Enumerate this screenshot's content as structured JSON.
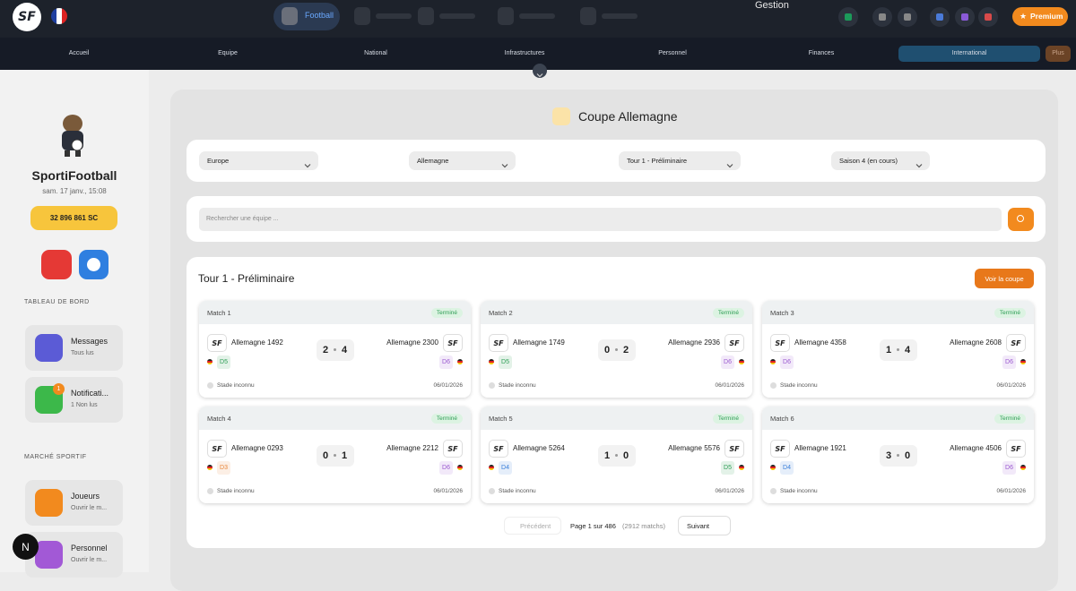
{
  "header": {
    "logo": "SF",
    "nav_active": "Football",
    "tooltip": "Gestion",
    "premium": "Premium",
    "dev_badge": "N"
  },
  "tabs": [
    "Accueil",
    "Equipe",
    "National",
    "Infrastructures",
    "Personnel",
    "Finances",
    "International",
    "Plus"
  ],
  "sidebar": {
    "name": "SportiFootball",
    "date": "sam. 17 janv., 15:08",
    "balance": "32 896 861 SC",
    "section_dashboard": "TABLEAU DE BORD",
    "dashboard_items": [
      {
        "title": "Messages",
        "sub": "Tous lus"
      },
      {
        "title": "Notificati...",
        "sub": "1 Non lus",
        "badge": "1"
      }
    ],
    "section_market": "MARCHÉ SPORTIF",
    "market_items": [
      {
        "title": "Joueurs",
        "sub": "Ouvrir le m..."
      },
      {
        "title": "Personnel",
        "sub": "Ouvrir le m..."
      }
    ]
  },
  "page": {
    "title": "Coupe Allemagne",
    "filters": [
      "Europe",
      "Allemagne",
      "Tour 1 - Préliminaire",
      "Saison 4 (en cours)"
    ],
    "search_placeholder": "Rechercher une équipe ...",
    "round": "Tour 1 - Préliminaire",
    "cup_button": "Voir la coupe",
    "division_colors": {
      "D3": "#e8863a",
      "D4": "#3b7fd9",
      "D5": "#2e9e55",
      "D6": "#9b59d0"
    },
    "matches": [
      {
        "label": "Match 1",
        "status": "Terminé",
        "home": "Allemagne 1492",
        "home_div": "D5",
        "score_home": 2,
        "score_away": 4,
        "away": "Allemagne 2300",
        "away_div": "D6",
        "venue": "Stade inconnu",
        "date": "06/01/2026"
      },
      {
        "label": "Match 2",
        "status": "Terminé",
        "home": "Allemagne 1749",
        "home_div": "D5",
        "score_home": 0,
        "score_away": 2,
        "away": "Allemagne 2936",
        "away_div": "D6",
        "venue": "Stade inconnu",
        "date": "06/01/2026"
      },
      {
        "label": "Match 3",
        "status": "Terminé",
        "home": "Allemagne 4358",
        "home_div": "D6",
        "score_home": 1,
        "score_away": 4,
        "away": "Allemagne 2608",
        "away_div": "D6",
        "venue": "Stade inconnu",
        "date": "06/01/2026"
      },
      {
        "label": "Match 4",
        "status": "Terminé",
        "home": "Allemagne 0293",
        "home_div": "D3",
        "score_home": 0,
        "score_away": 1,
        "away": "Allemagne 2212",
        "away_div": "D6",
        "venue": "Stade inconnu",
        "date": "06/01/2026"
      },
      {
        "label": "Match 5",
        "status": "Terminé",
        "home": "Allemagne 5264",
        "home_div": "D4",
        "score_home": 1,
        "score_away": 0,
        "away": "Allemagne 5576",
        "away_div": "D5",
        "venue": "Stade inconnu",
        "date": "06/01/2026"
      },
      {
        "label": "Match 6",
        "status": "Terminé",
        "home": "Allemagne 1921",
        "home_div": "D4",
        "score_home": 3,
        "score_away": 0,
        "away": "Allemagne 4506",
        "away_div": "D6",
        "venue": "Stade inconnu",
        "date": "06/01/2026"
      }
    ],
    "pagination": {
      "prev": "Précédent",
      "page": "Page 1 sur 486",
      "count": "(2912 matchs)",
      "next": "Suivant"
    }
  }
}
